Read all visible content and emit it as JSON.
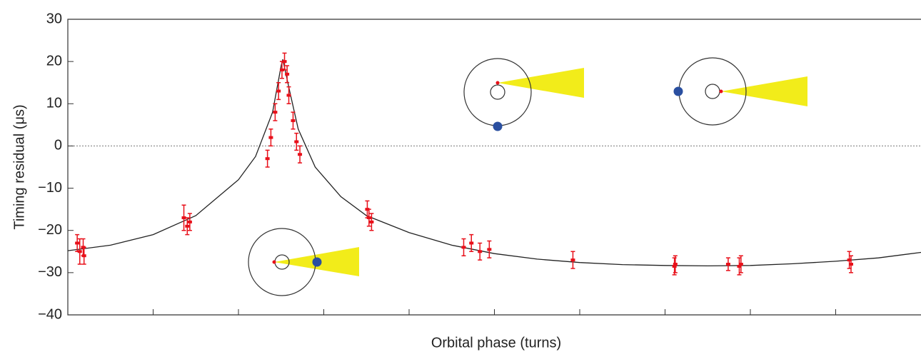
{
  "chart_data": {
    "type": "errorbar",
    "xlabel": "Orbital phase (turns)",
    "ylabel": "Timing residual (μs)",
    "xlim": [
      0,
      1
    ],
    "xticks": [
      0.1,
      0.2,
      0.3,
      0.4,
      0.5,
      0.6,
      0.7,
      0.8,
      0.9
    ],
    "ylim": [
      -40,
      30
    ],
    "yticks": [
      {
        "value": -40,
        "label": "−40"
      },
      {
        "value": -30,
        "label": "−30"
      },
      {
        "value": -20,
        "label": "−20"
      },
      {
        "value": -10,
        "label": "−10"
      },
      0,
      10,
      20,
      30
    ],
    "zero_line": true,
    "points": {
      "color": "#e8101a",
      "x": [
        0.011,
        0.014,
        0.018,
        0.019,
        0.136,
        0.14,
        0.143,
        0.234,
        0.238,
        0.243,
        0.247,
        0.251,
        0.254,
        0.257,
        0.259,
        0.264,
        0.268,
        0.272,
        0.351,
        0.353,
        0.356,
        0.464,
        0.473,
        0.483,
        0.494,
        0.592,
        0.711,
        0.712,
        0.774,
        0.787,
        0.789,
        0.916,
        0.918
      ],
      "values": [
        -23,
        -25,
        -24,
        -26,
        -17,
        -19,
        -18,
        -3,
        2,
        8,
        13,
        18,
        20,
        17,
        12,
        6,
        1,
        -2,
        -15,
        -17,
        -18,
        -24,
        -23,
        -25,
        -24.5,
        -27,
        -28.5,
        -28,
        -28,
        -28.5,
        -28,
        -27,
        -28
      ],
      "errors": [
        2,
        3,
        2,
        2,
        3,
        2,
        2,
        2,
        2,
        2,
        2,
        2,
        2,
        2,
        2,
        2,
        2,
        2,
        2,
        2,
        2,
        2,
        2,
        2,
        2,
        2,
        2,
        2,
        1.5,
        2,
        2,
        2,
        2
      ]
    },
    "model": {
      "color": "#222222",
      "x": [
        0,
        0.05,
        0.1,
        0.15,
        0.2,
        0.22,
        0.24,
        0.25,
        0.252,
        0.26,
        0.27,
        0.29,
        0.32,
        0.35,
        0.4,
        0.45,
        0.5,
        0.55,
        0.6,
        0.65,
        0.7,
        0.75,
        0.8,
        0.85,
        0.9,
        0.95,
        1
      ],
      "values": [
        -24.8,
        -23.5,
        -21,
        -16.5,
        -8,
        -2.5,
        8,
        19,
        20.5,
        13,
        4,
        -5,
        -12,
        -16.5,
        -20.5,
        -23.5,
        -25.5,
        -26.8,
        -27.6,
        -28.1,
        -28.3,
        -28.4,
        -28.3,
        -27.9,
        -27.3,
        -26.5,
        -25.2
      ]
    }
  }
}
